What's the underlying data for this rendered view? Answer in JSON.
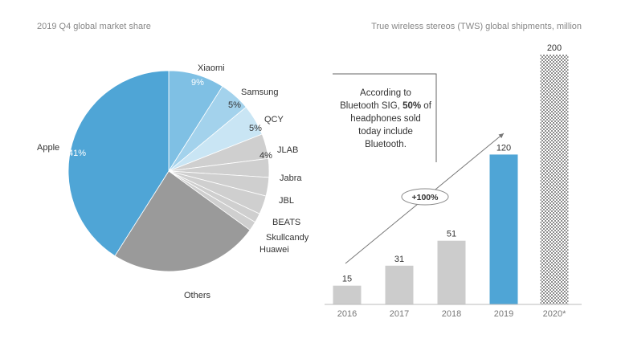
{
  "left_title": "2019 Q4 global market share",
  "right_title": "True wireless stereos (TWS) global shipments, million",
  "annotation": {
    "lines": [
      {
        "before": "According to",
        "bold": "",
        "after": ""
      },
      {
        "before": "Bluetooth SIG, ",
        "bold": "50%",
        "after": " of"
      },
      {
        "before": "headphones sold",
        "bold": "",
        "after": ""
      },
      {
        "before": "today include",
        "bold": "",
        "after": ""
      },
      {
        "before": "Bluetooth.",
        "bold": "",
        "after": ""
      }
    ]
  },
  "growth_label": "+100%",
  "colors": {
    "apple": "#4fa5d6",
    "xiaomi": "#7fc0e4",
    "samsung": "#a3d2ec",
    "qcy": "#c9e5f4",
    "light_gray": "#cfcfcf",
    "others": "#9a9a9a",
    "bar_gray": "#cccccc",
    "bar_blue": "#4fa5d6",
    "projection_pattern": "#9a9a9a"
  },
  "chart_data": [
    {
      "type": "pie",
      "title": "2019 Q4 global market share",
      "slices": [
        {
          "label": "Xiaomi",
          "value": 9,
          "value_label": "9%",
          "color": "#7fc0e4"
        },
        {
          "label": "Samsung",
          "value": 5,
          "value_label": "5%",
          "color": "#a3d2ec"
        },
        {
          "label": "QCY",
          "value": 5,
          "value_label": "5%",
          "color": "#c9e5f4"
        },
        {
          "label": "JLAB",
          "value": 4,
          "value_label": "4%",
          "color": "#cfcfcf"
        },
        {
          "label": "Jabra",
          "value": 3,
          "value_label": "",
          "color": "#cfcfcf"
        },
        {
          "label": "JBL",
          "value": 3,
          "value_label": "",
          "color": "#cfcfcf"
        },
        {
          "label": "BEATS",
          "value": 3,
          "value_label": "",
          "color": "#cfcfcf"
        },
        {
          "label": "Skullcandy",
          "value": 1.5,
          "value_label": "",
          "color": "#cfcfcf"
        },
        {
          "label": "Huawei",
          "value": 1.5,
          "value_label": "",
          "color": "#cfcfcf"
        },
        {
          "label": "Others",
          "value": 24,
          "value_label": "24%",
          "color": "#9a9a9a"
        },
        {
          "label": "Apple",
          "value": 41,
          "value_label": "41%",
          "color": "#4fa5d6"
        }
      ]
    },
    {
      "type": "bar",
      "title": "True wireless stereos (TWS) global shipments, million",
      "categories": [
        "2016",
        "2017",
        "2018",
        "2019",
        "2020*"
      ],
      "values": [
        15,
        31,
        51,
        120,
        200
      ],
      "styles": [
        "gray",
        "gray",
        "gray",
        "blue",
        "pattern"
      ],
      "ylim": [
        0,
        200
      ]
    }
  ]
}
